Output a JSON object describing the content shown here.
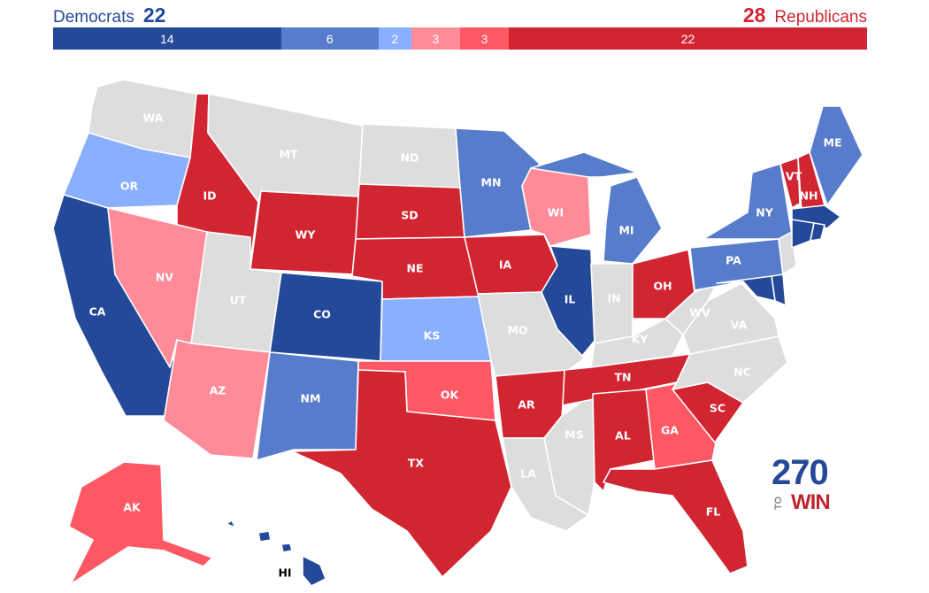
{
  "header": {
    "dem_label": "Democrats",
    "dem_total": "22",
    "rep_label": "Republicans",
    "rep_total": "28"
  },
  "colors": {
    "safe_dem": "#244999",
    "likely_dem": "#577ccc",
    "lean_dem": "#8aafff",
    "lean_rep": "#ff8b98",
    "likely_rep": "#ff5865",
    "safe_rep": "#d22532",
    "no_race": "#dddddd",
    "border": "#ffffff"
  },
  "bar": [
    {
      "key": "safe_dem",
      "value": 14,
      "label": "14"
    },
    {
      "key": "likely_dem",
      "value": 6,
      "label": "6"
    },
    {
      "key": "lean_dem",
      "value": 2,
      "label": "2"
    },
    {
      "key": "lean_rep",
      "value": 3,
      "label": "3"
    },
    {
      "key": "likely_rep",
      "value": 3,
      "label": "3"
    },
    {
      "key": "safe_rep",
      "value": 22,
      "label": "22"
    }
  ],
  "states": [
    {
      "abbr": "WA",
      "rating": "no_race"
    },
    {
      "abbr": "OR",
      "rating": "lean_dem"
    },
    {
      "abbr": "CA",
      "rating": "safe_dem"
    },
    {
      "abbr": "ID",
      "rating": "safe_rep"
    },
    {
      "abbr": "NV",
      "rating": "lean_rep"
    },
    {
      "abbr": "MT",
      "rating": "no_race"
    },
    {
      "abbr": "WY",
      "rating": "safe_rep"
    },
    {
      "abbr": "UT",
      "rating": "no_race"
    },
    {
      "abbr": "AZ",
      "rating": "lean_rep"
    },
    {
      "abbr": "CO",
      "rating": "safe_dem"
    },
    {
      "abbr": "NM",
      "rating": "likely_dem"
    },
    {
      "abbr": "ND",
      "rating": "no_race"
    },
    {
      "abbr": "SD",
      "rating": "safe_rep"
    },
    {
      "abbr": "NE",
      "rating": "safe_rep"
    },
    {
      "abbr": "KS",
      "rating": "lean_dem"
    },
    {
      "abbr": "OK",
      "rating": "likely_rep"
    },
    {
      "abbr": "TX",
      "rating": "safe_rep"
    },
    {
      "abbr": "MN",
      "rating": "likely_dem"
    },
    {
      "abbr": "IA",
      "rating": "safe_rep"
    },
    {
      "abbr": "MO",
      "rating": "no_race"
    },
    {
      "abbr": "AR",
      "rating": "safe_rep"
    },
    {
      "abbr": "LA",
      "rating": "no_race"
    },
    {
      "abbr": "WI",
      "rating": "lean_rep"
    },
    {
      "abbr": "IL",
      "rating": "safe_dem"
    },
    {
      "abbr": "MS",
      "rating": "no_race"
    },
    {
      "abbr": "MI",
      "rating": "likely_dem"
    },
    {
      "abbr": "IN",
      "rating": "no_race"
    },
    {
      "abbr": "OH",
      "rating": "safe_rep"
    },
    {
      "abbr": "KY",
      "rating": "no_race"
    },
    {
      "abbr": "TN",
      "rating": "safe_rep"
    },
    {
      "abbr": "AL",
      "rating": "safe_rep"
    },
    {
      "abbr": "GA",
      "rating": "likely_rep"
    },
    {
      "abbr": "FL",
      "rating": "safe_rep"
    },
    {
      "abbr": "SC",
      "rating": "safe_rep"
    },
    {
      "abbr": "NC",
      "rating": "no_race"
    },
    {
      "abbr": "VA",
      "rating": "no_race"
    },
    {
      "abbr": "WV",
      "rating": "no_race"
    },
    {
      "abbr": "PA",
      "rating": "likely_dem"
    },
    {
      "abbr": "NY",
      "rating": "likely_dem"
    },
    {
      "abbr": "VT",
      "rating": "safe_rep"
    },
    {
      "abbr": "NH",
      "rating": "safe_rep"
    },
    {
      "abbr": "ME",
      "rating": "likely_dem"
    },
    {
      "abbr": "MA",
      "rating": "safe_dem"
    },
    {
      "abbr": "CT",
      "rating": "safe_dem"
    },
    {
      "abbr": "RI",
      "rating": "safe_dem"
    },
    {
      "abbr": "NJ",
      "rating": "no_race"
    },
    {
      "abbr": "DE",
      "rating": "safe_dem"
    },
    {
      "abbr": "MD",
      "rating": "safe_dem"
    },
    {
      "abbr": "AK",
      "rating": "likely_rep"
    },
    {
      "abbr": "HI",
      "rating": "safe_dem"
    }
  ],
  "logo": {
    "number": "270",
    "to": "TO",
    "win": "WIN"
  }
}
